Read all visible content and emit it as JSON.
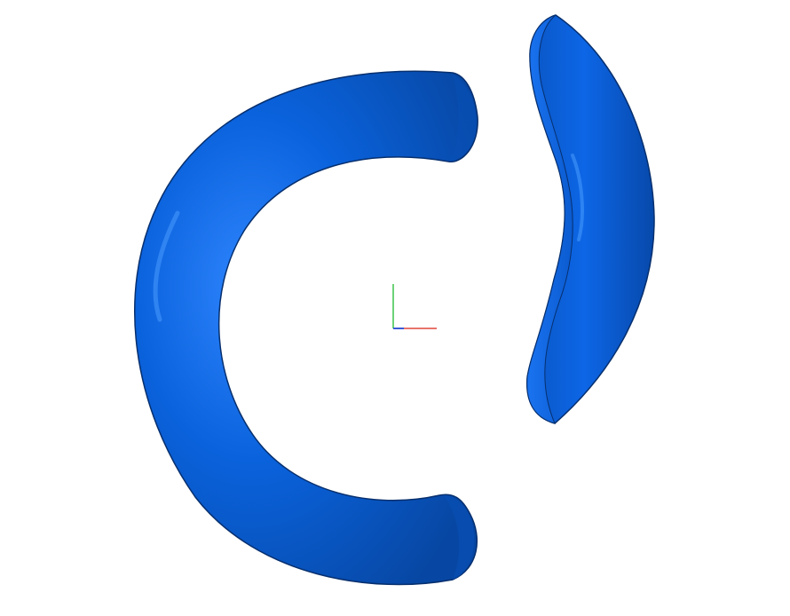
{
  "viewport": {
    "background": "#ffffff"
  },
  "scene": {
    "objects": [
      {
        "name": "c-shaped-torus-segment",
        "color": "#0a5fd6"
      },
      {
        "name": "crescent-segment",
        "color": "#0a5fd6"
      }
    ]
  },
  "axis_triad": {
    "x_color": "#e0453a",
    "y_color": "#3cc24a",
    "z_color": "#3a5bd6"
  }
}
